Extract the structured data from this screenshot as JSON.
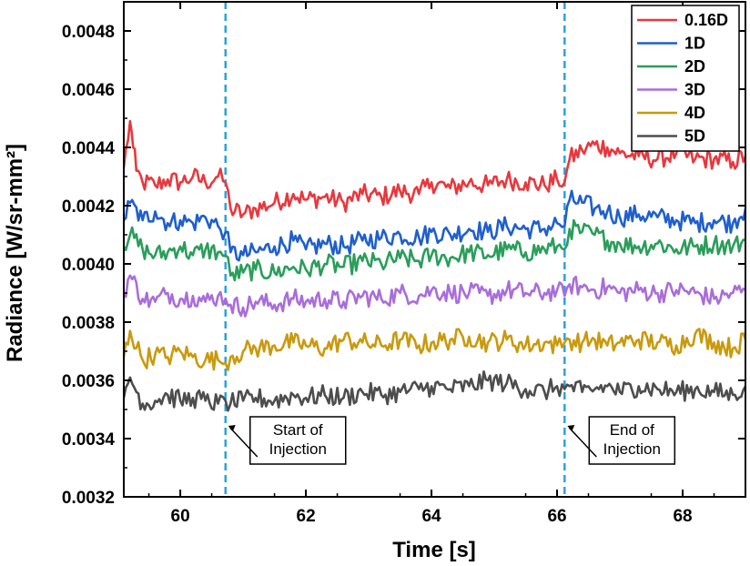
{
  "chart_data": {
    "type": "line",
    "xlabel": "Time [s]",
    "ylabel": "Radiance [W/sr-mm²]",
    "xlim": [
      59.1,
      69.0
    ],
    "ylim": [
      0.0032,
      0.0049
    ],
    "xticks": [
      60,
      62,
      64,
      66,
      68
    ],
    "xtick_labels": [
      "60",
      "62",
      "64",
      "66",
      "68"
    ],
    "yticks": [
      0.0032,
      0.0034,
      0.0036,
      0.0038,
      0.004,
      0.0042,
      0.0044,
      0.0046,
      0.0048
    ],
    "ytick_labels": [
      "0.0032",
      "0.0034",
      "0.0036",
      "0.0038",
      "0.0040",
      "0.0042",
      "0.0044",
      "0.0046",
      "0.0048"
    ],
    "grid": false,
    "legend_position": "top-right",
    "vlines": [
      60.72,
      66.12
    ],
    "annotations": [
      {
        "lines": [
          "Start of",
          "Injection"
        ],
        "x": 60.72,
        "y": 0.00345
      },
      {
        "lines": [
          "End of",
          "Injection"
        ],
        "x": 66.12,
        "y": 0.00345
      }
    ],
    "series": [
      {
        "name": "0.16D",
        "color": "#e8383d",
        "x": [
          59.1,
          59.2,
          59.25,
          59.3,
          59.4,
          59.6,
          59.8,
          60.0,
          60.2,
          60.4,
          60.6,
          60.72,
          60.8,
          61.0,
          61.2,
          61.5,
          61.8,
          62.0,
          62.3,
          62.6,
          62.9,
          63.2,
          63.5,
          63.8,
          64.0,
          64.3,
          64.6,
          64.9,
          65.2,
          65.5,
          65.8,
          66.0,
          66.12,
          66.2,
          66.4,
          66.6,
          66.8,
          67.0,
          67.3,
          67.6,
          67.9,
          68.2,
          68.5,
          68.8,
          69.0
        ],
        "values": [
          0.00433,
          0.00449,
          0.0044,
          0.00432,
          0.00428,
          0.00427,
          0.00429,
          0.00428,
          0.0043,
          0.00428,
          0.0043,
          0.00428,
          0.00419,
          0.00417,
          0.00419,
          0.00421,
          0.00424,
          0.00422,
          0.00423,
          0.00421,
          0.00424,
          0.00423,
          0.00425,
          0.00424,
          0.00428,
          0.00426,
          0.00428,
          0.00427,
          0.00429,
          0.00428,
          0.00427,
          0.00429,
          0.00428,
          0.00436,
          0.00439,
          0.00441,
          0.0044,
          0.00438,
          0.00437,
          0.00436,
          0.00438,
          0.00436,
          0.00436,
          0.00435,
          0.00437
        ]
      },
      {
        "name": "1D",
        "color": "#1f5fce",
        "x": [
          59.1,
          59.2,
          59.4,
          59.6,
          59.8,
          60.0,
          60.2,
          60.4,
          60.6,
          60.72,
          60.8,
          61.0,
          61.2,
          61.5,
          61.8,
          62.0,
          62.3,
          62.6,
          62.9,
          63.2,
          63.5,
          63.8,
          64.0,
          64.3,
          64.6,
          64.9,
          65.2,
          65.5,
          65.8,
          66.0,
          66.12,
          66.2,
          66.4,
          66.6,
          66.8,
          67.0,
          67.3,
          67.6,
          67.9,
          68.2,
          68.5,
          68.8,
          69.0
        ],
        "values": [
          0.00415,
          0.00421,
          0.00415,
          0.00418,
          0.00414,
          0.00415,
          0.00414,
          0.00416,
          0.00413,
          0.00411,
          0.00404,
          0.00403,
          0.00404,
          0.00406,
          0.00408,
          0.00405,
          0.00407,
          0.00406,
          0.00408,
          0.00409,
          0.0041,
          0.00409,
          0.00411,
          0.0041,
          0.00412,
          0.00411,
          0.00413,
          0.00412,
          0.00412,
          0.00414,
          0.00413,
          0.00422,
          0.00421,
          0.00419,
          0.00418,
          0.00416,
          0.00417,
          0.00416,
          0.00415,
          0.00414,
          0.00415,
          0.00414,
          0.00419
        ]
      },
      {
        "name": "2D",
        "color": "#2a9e5a",
        "x": [
          59.1,
          59.2,
          59.4,
          59.6,
          59.8,
          60.0,
          60.2,
          60.4,
          60.6,
          60.72,
          60.8,
          61.0,
          61.2,
          61.5,
          61.8,
          62.0,
          62.3,
          62.6,
          62.9,
          63.2,
          63.5,
          63.8,
          64.0,
          64.3,
          64.6,
          64.9,
          65.2,
          65.5,
          65.8,
          66.0,
          66.12,
          66.2,
          66.4,
          66.6,
          66.8,
          67.0,
          67.3,
          67.6,
          67.9,
          68.2,
          68.5,
          68.8,
          69.0
        ],
        "values": [
          0.00406,
          0.0041,
          0.00405,
          0.00403,
          0.00404,
          0.00406,
          0.00403,
          0.00405,
          0.00404,
          0.00403,
          0.00396,
          0.00397,
          0.00398,
          0.00397,
          0.00399,
          0.00398,
          0.004,
          0.00399,
          0.00401,
          0.004,
          0.00402,
          0.00401,
          0.00403,
          0.00402,
          0.00404,
          0.00403,
          0.00405,
          0.00404,
          0.00405,
          0.00406,
          0.00405,
          0.00412,
          0.00411,
          0.0041,
          0.00408,
          0.00407,
          0.00406,
          0.00407,
          0.00405,
          0.00406,
          0.00407,
          0.00406,
          0.00408
        ]
      },
      {
        "name": "3D",
        "color": "#a96ddb",
        "x": [
          59.1,
          59.2,
          59.4,
          59.6,
          59.8,
          60.0,
          60.2,
          60.4,
          60.6,
          60.72,
          60.8,
          61.0,
          61.2,
          61.5,
          61.8,
          62.0,
          62.3,
          62.6,
          62.9,
          63.2,
          63.5,
          63.8,
          64.0,
          64.3,
          64.6,
          64.9,
          65.2,
          65.5,
          65.8,
          66.0,
          66.12,
          66.2,
          66.4,
          66.6,
          66.8,
          67.0,
          67.3,
          67.6,
          67.9,
          68.2,
          68.5,
          68.8,
          69.0
        ],
        "values": [
          0.0039,
          0.00396,
          0.00388,
          0.00387,
          0.0039,
          0.00388,
          0.00389,
          0.00387,
          0.00389,
          0.00388,
          0.00386,
          0.00385,
          0.00387,
          0.00386,
          0.00388,
          0.00387,
          0.00388,
          0.00387,
          0.00389,
          0.00388,
          0.0039,
          0.00389,
          0.00391,
          0.0039,
          0.0039,
          0.00389,
          0.00391,
          0.0039,
          0.0039,
          0.00391,
          0.00389,
          0.00393,
          0.00392,
          0.00391,
          0.00392,
          0.0039,
          0.00391,
          0.0039,
          0.00391,
          0.0039,
          0.00388,
          0.0039,
          0.00391
        ]
      },
      {
        "name": "4D",
        "color": "#c99a0e",
        "x": [
          59.1,
          59.2,
          59.4,
          59.6,
          59.8,
          60.0,
          60.2,
          60.4,
          60.6,
          60.72,
          60.8,
          61.0,
          61.2,
          61.5,
          61.8,
          62.0,
          62.3,
          62.6,
          62.9,
          63.2,
          63.5,
          63.8,
          64.0,
          64.3,
          64.6,
          64.9,
          65.2,
          65.5,
          65.8,
          66.0,
          66.12,
          66.2,
          66.4,
          66.6,
          66.8,
          67.0,
          67.3,
          67.6,
          67.9,
          68.2,
          68.5,
          68.8,
          69.0
        ],
        "values": [
          0.00368,
          0.00377,
          0.00367,
          0.00369,
          0.00368,
          0.0037,
          0.00368,
          0.00367,
          0.00367,
          0.00366,
          0.00368,
          0.0037,
          0.00371,
          0.00372,
          0.00373,
          0.00372,
          0.00371,
          0.00374,
          0.00373,
          0.00372,
          0.00374,
          0.00372,
          0.00373,
          0.00374,
          0.00375,
          0.00373,
          0.00374,
          0.00372,
          0.00373,
          0.00372,
          0.00373,
          0.00374,
          0.00373,
          0.00374,
          0.00372,
          0.00373,
          0.00374,
          0.00373,
          0.00372,
          0.00376,
          0.00373,
          0.00371,
          0.00374
        ]
      },
      {
        "name": "5D",
        "color": "#4d4d4d",
        "x": [
          59.1,
          59.2,
          59.4,
          59.6,
          59.8,
          60.0,
          60.2,
          60.4,
          60.6,
          60.72,
          60.8,
          61.0,
          61.2,
          61.5,
          61.8,
          62.0,
          62.3,
          62.6,
          62.9,
          63.2,
          63.5,
          63.8,
          64.0,
          64.3,
          64.6,
          64.9,
          65.2,
          65.5,
          65.8,
          66.0,
          66.12,
          66.2,
          66.4,
          66.6,
          66.8,
          67.0,
          67.3,
          67.6,
          67.9,
          68.2,
          68.5,
          68.8,
          69.0
        ],
        "values": [
          0.00354,
          0.00361,
          0.00352,
          0.00353,
          0.00355,
          0.00353,
          0.00354,
          0.00353,
          0.00352,
          0.00353,
          0.00352,
          0.00353,
          0.00354,
          0.00353,
          0.00355,
          0.00354,
          0.00355,
          0.00354,
          0.00356,
          0.00355,
          0.00356,
          0.00357,
          0.00358,
          0.00357,
          0.00358,
          0.0036,
          0.00359,
          0.00357,
          0.00356,
          0.00358,
          0.00357,
          0.00358,
          0.00356,
          0.00357,
          0.00358,
          0.00356,
          0.00358,
          0.00357,
          0.00356,
          0.00357,
          0.00356,
          0.00355,
          0.00358
        ]
      }
    ]
  }
}
